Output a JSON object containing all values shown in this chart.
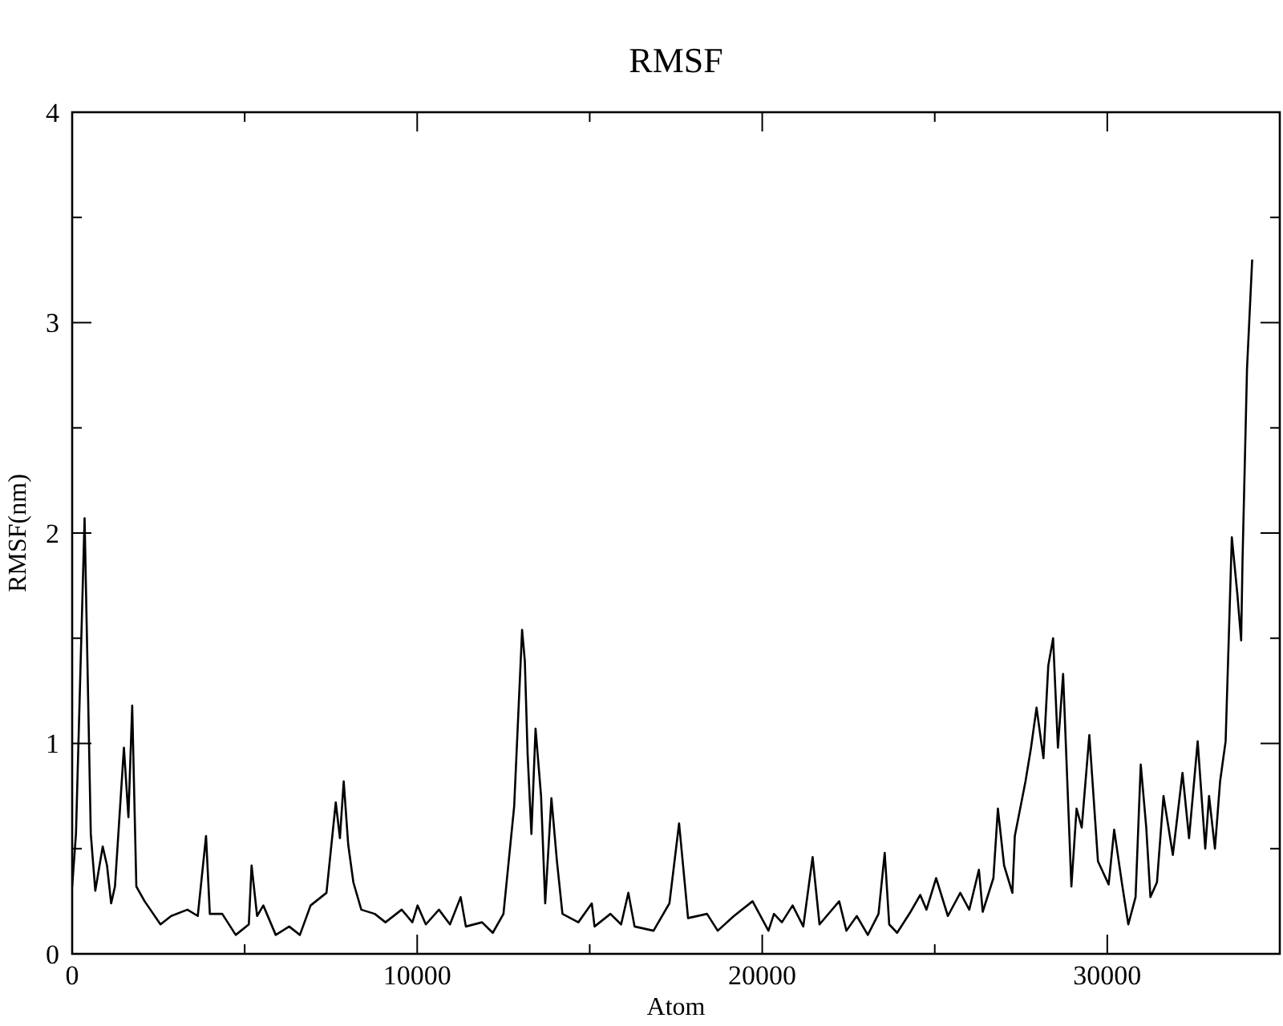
{
  "chart_data": {
    "type": "line",
    "title": "RMSF",
    "xlabel": "Atom",
    "ylabel": "RMSF(nm)",
    "xlim": [
      0,
      35000
    ],
    "ylim": [
      0,
      4
    ],
    "xticks": [
      0,
      {
        "value": 5000,
        "label": null
      },
      10000,
      {
        "value": 15000,
        "label": null
      },
      20000,
      {
        "value": 25000,
        "label": null
      },
      30000,
      {
        "value": 35000,
        "label": null
      }
    ],
    "yticks": [
      0,
      {
        "value": 0.5,
        "label": null
      },
      1,
      {
        "value": 1.5,
        "label": null
      },
      2,
      {
        "value": 2.5,
        "label": null
      },
      3,
      {
        "value": 3.5,
        "label": null
      },
      4
    ],
    "grid": false,
    "marker": "none",
    "line_style": "solid",
    "series": [
      {
        "color": "#000000",
        "x": [
          0,
          110,
          360,
          540,
          670,
          885,
          1010,
          1130,
          1240,
          1500,
          1630,
          1740,
          1860,
          2100,
          2560,
          2870,
          3340,
          3640,
          3880,
          3990,
          4350,
          4740,
          5120,
          5200,
          5360,
          5540,
          5900,
          6290,
          6600,
          6910,
          7370,
          7640,
          7760,
          7870,
          8000,
          8150,
          8380,
          8770,
          9080,
          9550,
          9860,
          10010,
          10250,
          10630,
          10950,
          11260,
          11410,
          11880,
          12190,
          12500,
          12810,
          13040,
          13120,
          13200,
          13310,
          13430,
          13590,
          13710,
          13890,
          14050,
          14210,
          14670,
          15060,
          15140,
          15600,
          15910,
          16120,
          16300,
          16850,
          17310,
          17590,
          17850,
          18400,
          18710,
          19180,
          19720,
          20180,
          20340,
          20570,
          20880,
          21190,
          21460,
          21660,
          22230,
          22440,
          22740,
          23060,
          23370,
          23550,
          23680,
          23910,
          24300,
          24580,
          24760,
          25040,
          25380,
          25740,
          26000,
          26280,
          26390,
          26700,
          26830,
          27010,
          27250,
          27320,
          27630,
          27790,
          27950,
          28150,
          28290,
          28430,
          28570,
          28720,
          28960,
          29110,
          29260,
          29480,
          29730,
          30040,
          30200,
          30430,
          30610,
          30820,
          30970,
          31130,
          31250,
          31440,
          31630,
          31900,
          32180,
          32370,
          32620,
          32840,
          32950,
          33120,
          33270,
          33430,
          33610,
          33770,
          33880,
          33920,
          34050,
          34200
        ],
        "values": [
          0.32,
          0.57,
          2.07,
          0.57,
          0.3,
          0.51,
          0.42,
          0.24,
          0.32,
          0.98,
          0.65,
          1.18,
          0.32,
          0.25,
          0.14,
          0.18,
          0.21,
          0.18,
          0.56,
          0.19,
          0.19,
          0.09,
          0.14,
          0.42,
          0.18,
          0.23,
          0.09,
          0.13,
          0.09,
          0.23,
          0.29,
          0.72,
          0.55,
          0.82,
          0.52,
          0.34,
          0.21,
          0.19,
          0.15,
          0.21,
          0.15,
          0.23,
          0.14,
          0.21,
          0.14,
          0.27,
          0.13,
          0.15,
          0.1,
          0.19,
          0.7,
          1.54,
          1.39,
          0.95,
          0.57,
          1.07,
          0.75,
          0.24,
          0.74,
          0.44,
          0.19,
          0.15,
          0.24,
          0.13,
          0.19,
          0.14,
          0.29,
          0.13,
          0.11,
          0.24,
          0.62,
          0.17,
          0.19,
          0.11,
          0.18,
          0.25,
          0.11,
          0.19,
          0.15,
          0.23,
          0.13,
          0.46,
          0.14,
          0.25,
          0.11,
          0.18,
          0.09,
          0.19,
          0.48,
          0.14,
          0.1,
          0.2,
          0.28,
          0.21,
          0.36,
          0.18,
          0.29,
          0.21,
          0.4,
          0.2,
          0.36,
          0.69,
          0.42,
          0.29,
          0.56,
          0.82,
          0.98,
          1.17,
          0.93,
          1.37,
          1.5,
          0.98,
          1.33,
          0.32,
          0.69,
          0.6,
          1.04,
          0.44,
          0.33,
          0.59,
          0.33,
          0.14,
          0.27,
          0.9,
          0.6,
          0.27,
          0.34,
          0.75,
          0.47,
          0.86,
          0.55,
          1.01,
          0.5,
          0.75,
          0.5,
          0.82,
          1.01,
          1.98,
          1.71,
          1.49,
          1.87,
          2.78,
          3.3
        ]
      }
    ]
  }
}
